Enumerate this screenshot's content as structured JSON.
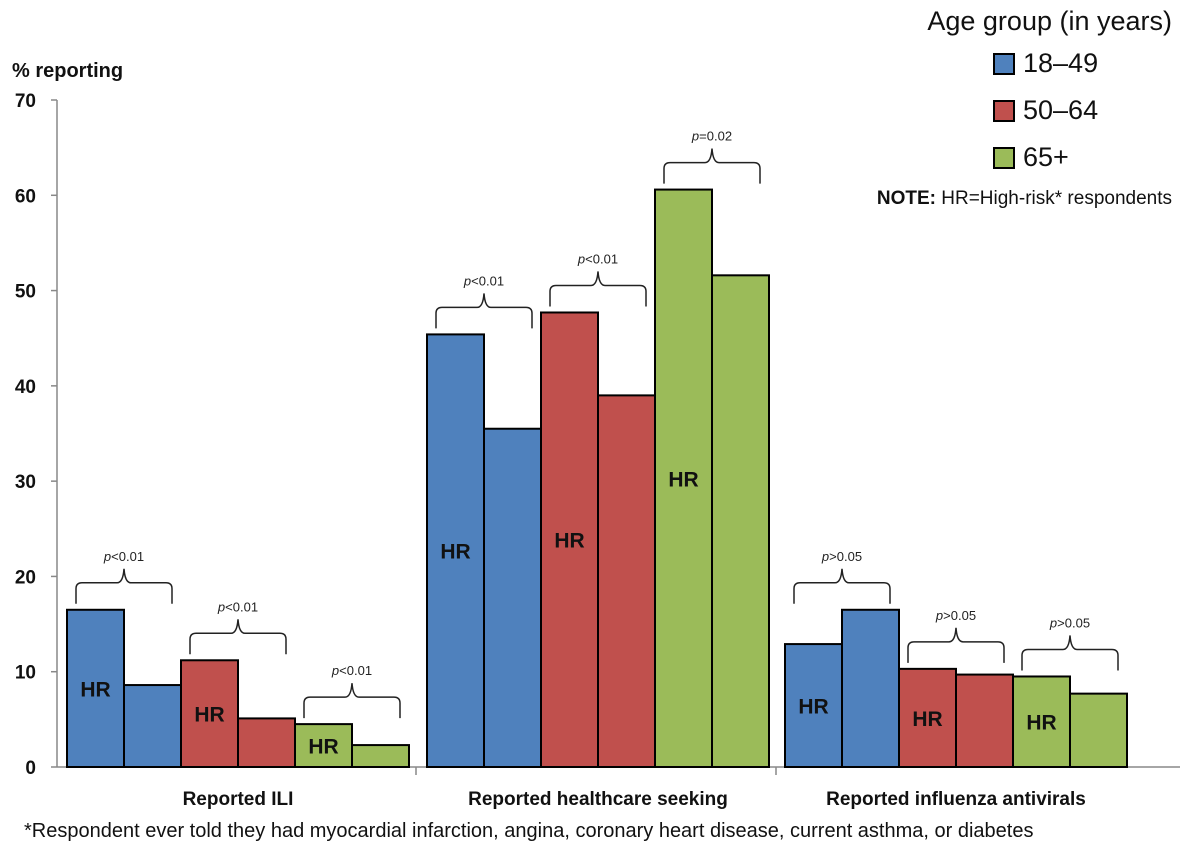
{
  "chart_data": {
    "type": "bar",
    "ylabel": "% reporting",
    "ylim": [
      0,
      70
    ],
    "yticks": [
      "0",
      "10",
      "20",
      "30",
      "40",
      "50",
      "60",
      "70"
    ],
    "legend_title": "Age group (in years)",
    "legend": [
      "18–49",
      "50–64",
      "65+"
    ],
    "colors": [
      "#4f81bd",
      "#c0504d",
      "#9bbb59"
    ],
    "bar_label": "HR",
    "categories": [
      "Reported ILI",
      "Reported healthcare seeking",
      "Reported influenza antivirals"
    ],
    "groups": [
      {
        "category": "Reported ILI",
        "pairs": [
          {
            "age": "18–49",
            "hr": 16.5,
            "non_hr": 8.6,
            "p": "<0.01"
          },
          {
            "age": "50–64",
            "hr": 11.2,
            "non_hr": 5.1,
            "p": "<0.01"
          },
          {
            "age": "65+",
            "hr": 4.5,
            "non_hr": 2.3,
            "p": "<0.01"
          }
        ]
      },
      {
        "category": "Reported healthcare seeking",
        "pairs": [
          {
            "age": "18–49",
            "hr": 45.4,
            "non_hr": 35.5,
            "p": "<0.01"
          },
          {
            "age": "50–64",
            "hr": 47.7,
            "non_hr": 39.0,
            "p": "<0.01"
          },
          {
            "age": "65+",
            "hr": 60.6,
            "non_hr": 51.6,
            "p": "=0.02"
          }
        ]
      },
      {
        "category": "Reported influenza antivirals",
        "pairs": [
          {
            "age": "18–49",
            "hr": 12.9,
            "non_hr": 16.5,
            "p": ">0.05"
          },
          {
            "age": "50–64",
            "hr": 10.3,
            "non_hr": 9.7,
            "p": ">0.05"
          },
          {
            "age": "65+",
            "hr": 9.5,
            "non_hr": 7.7,
            "p": ">0.05"
          }
        ]
      }
    ]
  },
  "note": {
    "label": "NOTE:",
    "text": " HR=High-risk* respondents"
  },
  "footnote": "*Respondent ever told they had myocardial infarction, angina, coronary heart disease, current asthma, or diabetes"
}
